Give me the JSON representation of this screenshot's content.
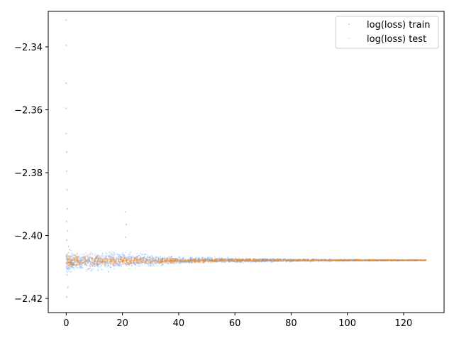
{
  "chart_data": {
    "type": "scatter",
    "title": "",
    "xlabel": "",
    "ylabel": "",
    "xlim": [
      -6.4,
      134.4
    ],
    "ylim": [
      -2.4245,
      -2.3287
    ],
    "x_ticks": [
      {
        "value": 0,
        "label": "0"
      },
      {
        "value": 20,
        "label": "20"
      },
      {
        "value": 40,
        "label": "40"
      },
      {
        "value": 60,
        "label": "60"
      },
      {
        "value": 80,
        "label": "80"
      },
      {
        "value": 100,
        "label": "100"
      },
      {
        "value": 120,
        "label": "120"
      }
    ],
    "y_ticks": [
      {
        "value": -2.34,
        "label": "−2.34"
      },
      {
        "value": -2.36,
        "label": "−2.36"
      },
      {
        "value": -2.38,
        "label": "−2.38"
      },
      {
        "value": -2.4,
        "label": "−2.40"
      },
      {
        "value": -2.42,
        "label": "−2.42"
      }
    ],
    "grid": false,
    "legend_position": "top-right",
    "series": [
      {
        "name": "log(loss) train",
        "color": "#1f7fff",
        "points": [
          [
            0,
            -2.3315
          ],
          [
            0,
            -2.3395
          ],
          [
            0,
            -2.3515
          ],
          [
            0,
            -2.3595
          ],
          [
            0,
            -2.3675
          ],
          [
            0.1,
            -2.3735
          ],
          [
            0.2,
            -2.3795
          ],
          [
            0.3,
            -2.3855
          ],
          [
            0.4,
            -2.3915
          ],
          [
            0.1,
            -2.3955
          ],
          [
            0.5,
            -2.3985
          ],
          [
            0.2,
            -2.4015
          ],
          [
            0.8,
            -2.4035
          ],
          [
            1.2,
            -2.4045
          ],
          [
            0.3,
            -2.4125
          ],
          [
            0.6,
            -2.4165
          ],
          [
            0.2,
            -2.4195
          ],
          [
            21,
            -2.3925
          ],
          [
            21.3,
            -2.3965
          ],
          [
            21.1,
            -2.4005
          ],
          [
            8,
            -2.4105
          ],
          [
            15,
            -2.4115
          ],
          [
            30,
            -2.4095
          ]
        ],
        "band": [
          [
            0,
            -2.4135,
            -2.4035
          ],
          [
            5,
            -2.4125,
            -2.4045
          ],
          [
            10,
            -2.412,
            -2.4045
          ],
          [
            20,
            -2.4115,
            -2.404
          ],
          [
            30,
            -2.4105,
            -2.4055
          ],
          [
            40,
            -2.4095,
            -2.4065
          ],
          [
            50,
            -2.409,
            -2.4065
          ],
          [
            60,
            -2.4088,
            -2.407
          ],
          [
            80,
            -2.4085,
            -2.4072
          ],
          [
            100,
            -2.4082,
            -2.4075
          ],
          [
            128,
            -2.408,
            -2.4077
          ]
        ]
      },
      {
        "name": "log(loss) test",
        "color": "#ff8c1a",
        "band": [
          [
            0,
            -2.411,
            -2.405
          ],
          [
            10,
            -2.4105,
            -2.4055
          ],
          [
            20,
            -2.41,
            -2.406
          ],
          [
            30,
            -2.4095,
            -2.4065
          ],
          [
            40,
            -2.409,
            -2.407
          ],
          [
            60,
            -2.4085,
            -2.4072
          ],
          [
            90,
            -2.4082,
            -2.4075
          ],
          [
            128,
            -2.408,
            -2.4077
          ]
        ]
      }
    ],
    "legend": [
      {
        "label": "log(loss) train",
        "color": "#1f7fff"
      },
      {
        "label": "log(loss) test",
        "color": "#ff8c1a"
      }
    ]
  }
}
